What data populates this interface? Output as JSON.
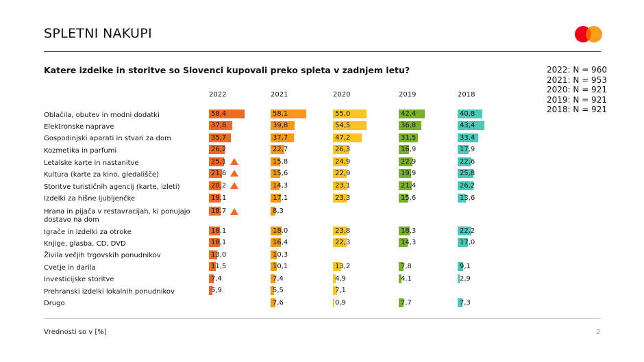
{
  "page_title": "SPLETNI NAKUPI",
  "question": "Katere izdelke in storitve so Slovenci kupovali preko spleta v zadnjem letu?",
  "sample_sizes": [
    "2022: N = 960",
    "2021: N = 953",
    "2020: N = 921",
    "2019: N = 921",
    "2018: N = 921"
  ],
  "footnote": "Vrednosti so v [%]",
  "page_number": "2",
  "colors": {
    "2022": "#ef6a24",
    "2021": "#f39a1d",
    "2020": "#f7c623",
    "2019": "#79b02e",
    "2018": "#4cc8b8",
    "logo_red": "#eb001b",
    "logo_orange": "#f79e1b",
    "logo_overlap": "#ff5f00",
    "increase_marker": "#ef6a24"
  },
  "chart_data": {
    "type": "bar",
    "orientation": "horizontal",
    "categories": [
      "Oblačila, obutev in modni dodatki",
      "Elektronske naprave",
      "Gospodinjski aparati in stvari za dom",
      "Kozmetika in parfumi",
      "Letalske karte in nastanitve",
      "Kultura (karte za kino, gledališče)",
      "Storitve turističnih agencij (karte, izleti)",
      "Izdelki za hišne ljubljenčke",
      "Hrana in pijača v restavracijah, ki ponujajo dostavo na dom",
      "Igrače in izdelki za otroke",
      "Knjige, glasba, CD, DVD",
      "Živila večjih trgovskih ponudnikov",
      "Cvetje in darila",
      "Investicijske storitve",
      "Prehranski izdelki lokalnih ponudnikov",
      "Drugo"
    ],
    "series": [
      {
        "name": "2022",
        "labels": [
          "58,4",
          "37,8",
          "35,7",
          "26,2",
          "25,1",
          "21,6",
          "20,2",
          "19,1",
          "18,7",
          "18,1",
          "18,1",
          "13,0",
          "11,5",
          "7,4",
          "5,9",
          ""
        ],
        "values": [
          58.4,
          37.8,
          35.7,
          26.2,
          25.1,
          21.6,
          20.2,
          19.1,
          18.7,
          18.1,
          18.1,
          13.0,
          11.5,
          7.4,
          5.9,
          null
        ]
      },
      {
        "name": "2021",
        "labels": [
          "58,1",
          "39,8",
          "37,7",
          "22,7",
          "15,8",
          "15,6",
          "14,3",
          "17,1",
          "8,3",
          "18,0",
          "16,4",
          "10,3",
          "10,1",
          "7,4",
          "5,5",
          "7,6"
        ],
        "values": [
          58.1,
          39.8,
          37.7,
          22.7,
          15.8,
          15.6,
          14.3,
          17.1,
          8.3,
          18.0,
          16.4,
          10.3,
          10.1,
          7.4,
          5.5,
          7.6
        ]
      },
      {
        "name": "2020",
        "labels": [
          "55,0",
          "54,5",
          "47,2",
          "26,3",
          "24,9",
          "22,9",
          "23,1",
          "23,3",
          "",
          "23,8",
          "22,3",
          "",
          "13,2",
          "4,9",
          "7,1",
          "0,9"
        ],
        "values": [
          55.0,
          54.5,
          47.2,
          26.3,
          24.9,
          22.9,
          23.1,
          23.3,
          null,
          23.8,
          22.3,
          null,
          13.2,
          4.9,
          7.1,
          0.9
        ]
      },
      {
        "name": "2019",
        "labels": [
          "42,4",
          "36,8",
          "31,5",
          "16,9",
          "22,9",
          "19,9",
          "21,4",
          "15,6",
          "",
          "18,3",
          "14,3",
          "",
          "7,8",
          "4,1",
          "",
          "7,7"
        ],
        "values": [
          42.4,
          36.8,
          31.5,
          16.9,
          22.9,
          19.9,
          21.4,
          15.6,
          null,
          18.3,
          14.3,
          null,
          7.8,
          4.1,
          null,
          7.7
        ]
      },
      {
        "name": "2018",
        "labels": [
          "40,8",
          "43,4",
          "33,4",
          "17,9",
          "22,6",
          "25,8",
          "26,2",
          "13,6",
          "",
          "22,2",
          "17,0",
          "",
          "9,1",
          "2,9",
          "",
          "7,3"
        ],
        "values": [
          40.8,
          43.4,
          33.4,
          17.9,
          22.6,
          25.8,
          26.2,
          13.6,
          null,
          22.2,
          17.0,
          null,
          9.1,
          2.9,
          null,
          7.3
        ]
      }
    ],
    "increase_markers": {
      "series": "2022",
      "categories": [
        4,
        5,
        6,
        8
      ]
    }
  }
}
